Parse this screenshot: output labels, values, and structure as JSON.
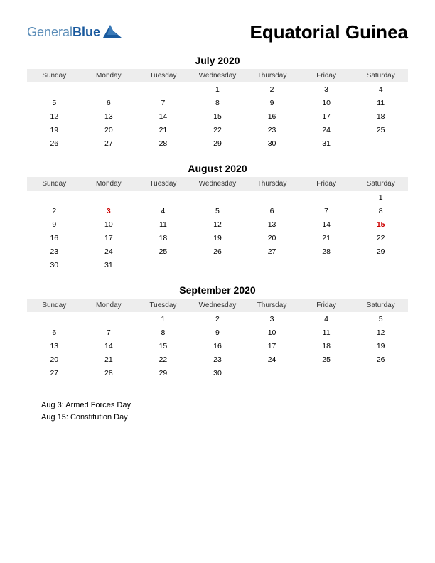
{
  "logo": {
    "general": "General",
    "blue": "Blue"
  },
  "title": "Equatorial Guinea",
  "weekdays": [
    "Sunday",
    "Monday",
    "Tuesday",
    "Wednesday",
    "Thursday",
    "Friday",
    "Saturday"
  ],
  "colors": {
    "header_bg": "#ededed",
    "holiday_text": "#cc0000",
    "logo_general": "#5b8db8",
    "logo_blue": "#1a5a9e",
    "logo_icon_fill": "#1a5a9e",
    "body_text": "#000000",
    "background": "#ffffff"
  },
  "typography": {
    "title_fontsize": 26,
    "month_title_fontsize": 14,
    "weekday_fontsize": 10,
    "date_fontsize": 10.5,
    "holidays_fontsize": 11,
    "logo_fontsize": 18
  },
  "months": [
    {
      "title": "July 2020",
      "weeks": [
        [
          "",
          "",
          "",
          "1",
          "2",
          "3",
          "4"
        ],
        [
          "5",
          "6",
          "7",
          "8",
          "9",
          "10",
          "11"
        ],
        [
          "12",
          "13",
          "14",
          "15",
          "16",
          "17",
          "18"
        ],
        [
          "19",
          "20",
          "21",
          "22",
          "23",
          "24",
          "25"
        ],
        [
          "26",
          "27",
          "28",
          "29",
          "30",
          "31",
          ""
        ]
      ],
      "holidays_idx": []
    },
    {
      "title": "August 2020",
      "weeks": [
        [
          "",
          "",
          "",
          "",
          "",
          "",
          "1"
        ],
        [
          "2",
          "3",
          "4",
          "5",
          "6",
          "7",
          "8"
        ],
        [
          "9",
          "10",
          "11",
          "12",
          "13",
          "14",
          "15"
        ],
        [
          "16",
          "17",
          "18",
          "19",
          "20",
          "21",
          "22"
        ],
        [
          "23",
          "24",
          "25",
          "26",
          "27",
          "28",
          "29"
        ],
        [
          "30",
          "31",
          "",
          "",
          "",
          "",
          ""
        ]
      ],
      "holidays_idx": [
        [
          1,
          1
        ],
        [
          2,
          6
        ]
      ]
    },
    {
      "title": "September 2020",
      "weeks": [
        [
          "",
          "",
          "1",
          "2",
          "3",
          "4",
          "5"
        ],
        [
          "6",
          "7",
          "8",
          "9",
          "10",
          "11",
          "12"
        ],
        [
          "13",
          "14",
          "15",
          "16",
          "17",
          "18",
          "19"
        ],
        [
          "20",
          "21",
          "22",
          "23",
          "24",
          "25",
          "26"
        ],
        [
          "27",
          "28",
          "29",
          "30",
          "",
          "",
          ""
        ]
      ],
      "holidays_idx": []
    }
  ],
  "holidays_list": [
    "Aug 3: Armed Forces Day",
    "Aug 15: Constitution Day"
  ]
}
